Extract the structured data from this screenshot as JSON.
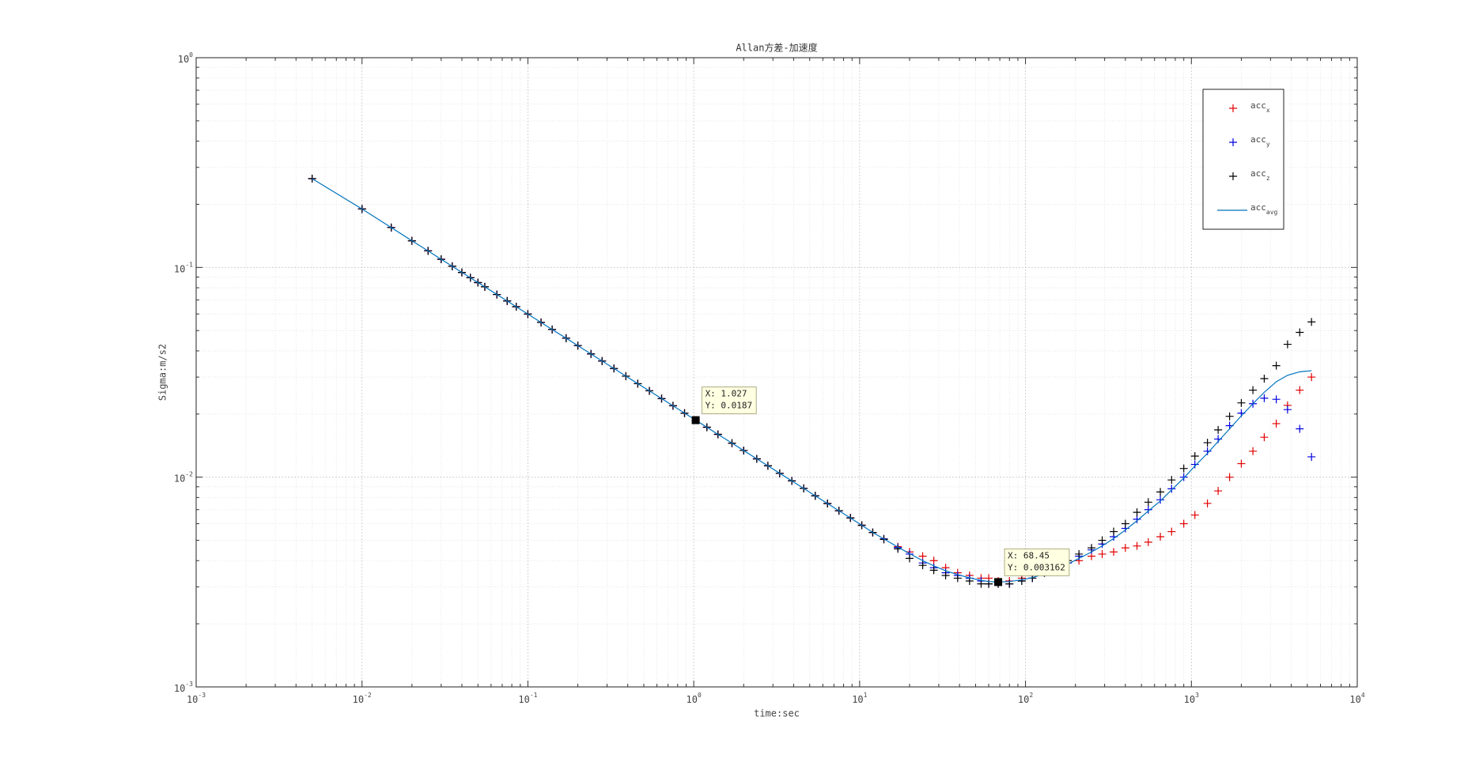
{
  "chart_data": {
    "type": "scatter",
    "title": "Allan方差-加速度",
    "x_label": "time:sec",
    "y_label": "Sigma:m/s2",
    "xscale": "log",
    "yscale": "log",
    "grid": true,
    "minor_grid": true,
    "legend": "northeast",
    "xlim": [
      0.001,
      10000
    ],
    "ylim": [
      0.001,
      1
    ],
    "xticks": [
      {
        "value": 0.001,
        "label": "10",
        "exponent": "-3"
      },
      {
        "value": 0.01,
        "label": "10",
        "exponent": "-2"
      },
      {
        "value": 0.1,
        "label": "10",
        "exponent": "-1"
      },
      {
        "value": 1,
        "label": "10",
        "exponent": "0"
      },
      {
        "value": 10,
        "label": "10",
        "exponent": "1"
      },
      {
        "value": 100,
        "label": "10",
        "exponent": "2"
      },
      {
        "value": 1000,
        "label": "10",
        "exponent": "3"
      },
      {
        "value": 10000,
        "label": "10",
        "exponent": "4"
      }
    ],
    "yticks": [
      {
        "value": 0.001,
        "label": "10",
        "exponent": "-3"
      },
      {
        "value": 0.01,
        "label": "10",
        "exponent": "-2"
      },
      {
        "value": 0.1,
        "label": "10",
        "exponent": "-1"
      },
      {
        "value": 1,
        "label": "10",
        "exponent": "0"
      }
    ],
    "x": [
      0.005,
      0.01,
      0.015,
      0.02,
      0.025,
      0.03,
      0.035,
      0.04,
      0.045,
      0.05,
      0.055,
      0.065,
      0.075,
      0.085,
      0.1,
      0.12,
      0.14,
      0.17,
      0.2,
      0.24,
      0.28,
      0.33,
      0.39,
      0.46,
      0.54,
      0.64,
      0.75,
      0.88,
      1.027,
      1.2,
      1.4,
      1.7,
      2,
      2.4,
      2.8,
      3.3,
      3.9,
      4.6,
      5.4,
      6.4,
      7.5,
      8.8,
      10.3,
      12,
      14,
      17,
      20,
      24,
      28,
      33,
      39,
      46,
      54,
      60,
      68.45,
      80,
      95,
      110,
      130,
      155,
      180,
      210,
      250,
      290,
      340,
      400,
      470,
      550,
      650,
      760,
      900,
      1050,
      1250,
      1450,
      1700,
      2000,
      2350,
      2750,
      3250,
      3800,
      4500,
      5300
    ],
    "series": [
      {
        "name": "acc",
        "name_subscript": "x",
        "color": "#e00000",
        "marker": "+",
        "values": [
          0.265,
          0.19,
          0.155,
          0.134,
          0.12,
          0.1094,
          0.1013,
          0.0947,
          0.0893,
          0.0847,
          0.0808,
          0.0743,
          0.0692,
          0.065,
          0.0599,
          0.0547,
          0.0506,
          0.046,
          0.0424,
          0.0387,
          0.0358,
          0.033,
          0.0303,
          0.0279,
          0.0258,
          0.0237,
          0.0219,
          0.0202,
          0.0187,
          0.0173,
          0.016,
          0.01453,
          0.0134,
          0.01223,
          0.01133,
          0.01043,
          0.0096,
          0.00884,
          0.00815,
          0.00749,
          0.00692,
          0.00639,
          0.0059,
          0.00545,
          0.00508,
          0.00466,
          0.0044,
          0.0042,
          0.004,
          0.0037,
          0.0035,
          0.0034,
          0.0033,
          0.0033,
          0.0032,
          0.0032,
          0.0033,
          0.0034,
          0.0035,
          0.0037,
          0.0039,
          0.004,
          0.0042,
          0.0043,
          0.0044,
          0.0046,
          0.0047,
          0.0049,
          0.0052,
          0.0055,
          0.006,
          0.0066,
          0.0075,
          0.0086,
          0.01,
          0.0116,
          0.0133,
          0.0155,
          0.018,
          0.022,
          0.026,
          0.03
        ]
      },
      {
        "name": "acc",
        "name_subscript": "y",
        "color": "#0000e0",
        "marker": "+",
        "values": [
          0.265,
          0.19,
          0.155,
          0.134,
          0.12,
          0.1094,
          0.1013,
          0.0947,
          0.0893,
          0.0847,
          0.0808,
          0.0743,
          0.0692,
          0.065,
          0.0599,
          0.0547,
          0.0506,
          0.046,
          0.0424,
          0.0387,
          0.0358,
          0.033,
          0.0303,
          0.0279,
          0.0258,
          0.0237,
          0.0219,
          0.0202,
          0.0187,
          0.0173,
          0.016,
          0.01453,
          0.0134,
          0.01223,
          0.01133,
          0.01043,
          0.0096,
          0.00884,
          0.00815,
          0.00749,
          0.00692,
          0.00639,
          0.0059,
          0.00545,
          0.00508,
          0.00462,
          0.0043,
          0.0039,
          0.0037,
          0.0035,
          0.0034,
          0.0033,
          0.0032,
          0.0031,
          0.0031,
          0.0031,
          0.0032,
          0.0033,
          0.0035,
          0.0037,
          0.0039,
          0.0042,
          0.0045,
          0.0048,
          0.0052,
          0.0057,
          0.0063,
          0.007,
          0.0078,
          0.0088,
          0.01,
          0.0115,
          0.0133,
          0.0152,
          0.0176,
          0.0202,
          0.0224,
          0.0238,
          0.0235,
          0.021,
          0.017,
          0.0125
        ]
      },
      {
        "name": "acc",
        "name_subscript": "z",
        "color": "#000000",
        "marker": "+",
        "values": [
          0.265,
          0.19,
          0.155,
          0.134,
          0.12,
          0.1094,
          0.1013,
          0.0947,
          0.0893,
          0.0847,
          0.0808,
          0.0743,
          0.0692,
          0.065,
          0.0599,
          0.0547,
          0.0506,
          0.046,
          0.0424,
          0.0387,
          0.0358,
          0.033,
          0.0303,
          0.0279,
          0.0258,
          0.0237,
          0.0219,
          0.0202,
          0.0187,
          0.0173,
          0.016,
          0.01453,
          0.0134,
          0.01223,
          0.01133,
          0.01043,
          0.0096,
          0.00884,
          0.00815,
          0.00749,
          0.00692,
          0.00639,
          0.0059,
          0.00545,
          0.00505,
          0.00455,
          0.0041,
          0.0038,
          0.0036,
          0.0034,
          0.0033,
          0.0032,
          0.0031,
          0.0031,
          0.0031,
          0.0031,
          0.0032,
          0.0033,
          0.0035,
          0.0038,
          0.004,
          0.0043,
          0.0046,
          0.005,
          0.0055,
          0.006,
          0.0068,
          0.0076,
          0.0085,
          0.0097,
          0.011,
          0.0126,
          0.0146,
          0.0168,
          0.0195,
          0.0226,
          0.026,
          0.0295,
          0.034,
          0.043,
          0.049,
          0.055
        ]
      },
      {
        "name": "acc",
        "name_subscript": "avg",
        "color": "#0072bd",
        "marker": "line",
        "values": [
          0.265,
          0.19,
          0.155,
          0.134,
          0.12,
          0.1094,
          0.1013,
          0.0947,
          0.0893,
          0.0847,
          0.0808,
          0.0743,
          0.0692,
          0.065,
          0.0599,
          0.0547,
          0.0506,
          0.046,
          0.0424,
          0.0387,
          0.0358,
          0.033,
          0.0303,
          0.0279,
          0.0258,
          0.0237,
          0.0219,
          0.0202,
          0.0187,
          0.0173,
          0.016,
          0.01453,
          0.0134,
          0.01223,
          0.01133,
          0.01043,
          0.0096,
          0.00884,
          0.00815,
          0.00749,
          0.00692,
          0.00639,
          0.0059,
          0.00545,
          0.00508,
          0.00464,
          0.00432,
          0.004,
          0.00378,
          0.00358,
          0.00343,
          0.00331,
          0.00322,
          0.00318,
          0.003162,
          0.00318,
          0.00324,
          0.00332,
          0.00346,
          0.00365,
          0.00385,
          0.0041,
          0.0044,
          0.0047,
          0.0051,
          0.0056,
          0.0062,
          0.0069,
          0.0077,
          0.0087,
          0.0099,
          0.0113,
          0.013,
          0.0148,
          0.017,
          0.0196,
          0.0224,
          0.0254,
          0.0285,
          0.0306,
          0.0318,
          0.0322
        ]
      }
    ],
    "annotations": [
      {
        "x": 1.027,
        "y": 0.0187,
        "lines": [
          "X: 1.027",
          "Y: 0.0187"
        ]
      },
      {
        "x": 68.45,
        "y": 0.003162,
        "lines": [
          "X: 68.45",
          "Y: 0.003162"
        ]
      }
    ]
  }
}
